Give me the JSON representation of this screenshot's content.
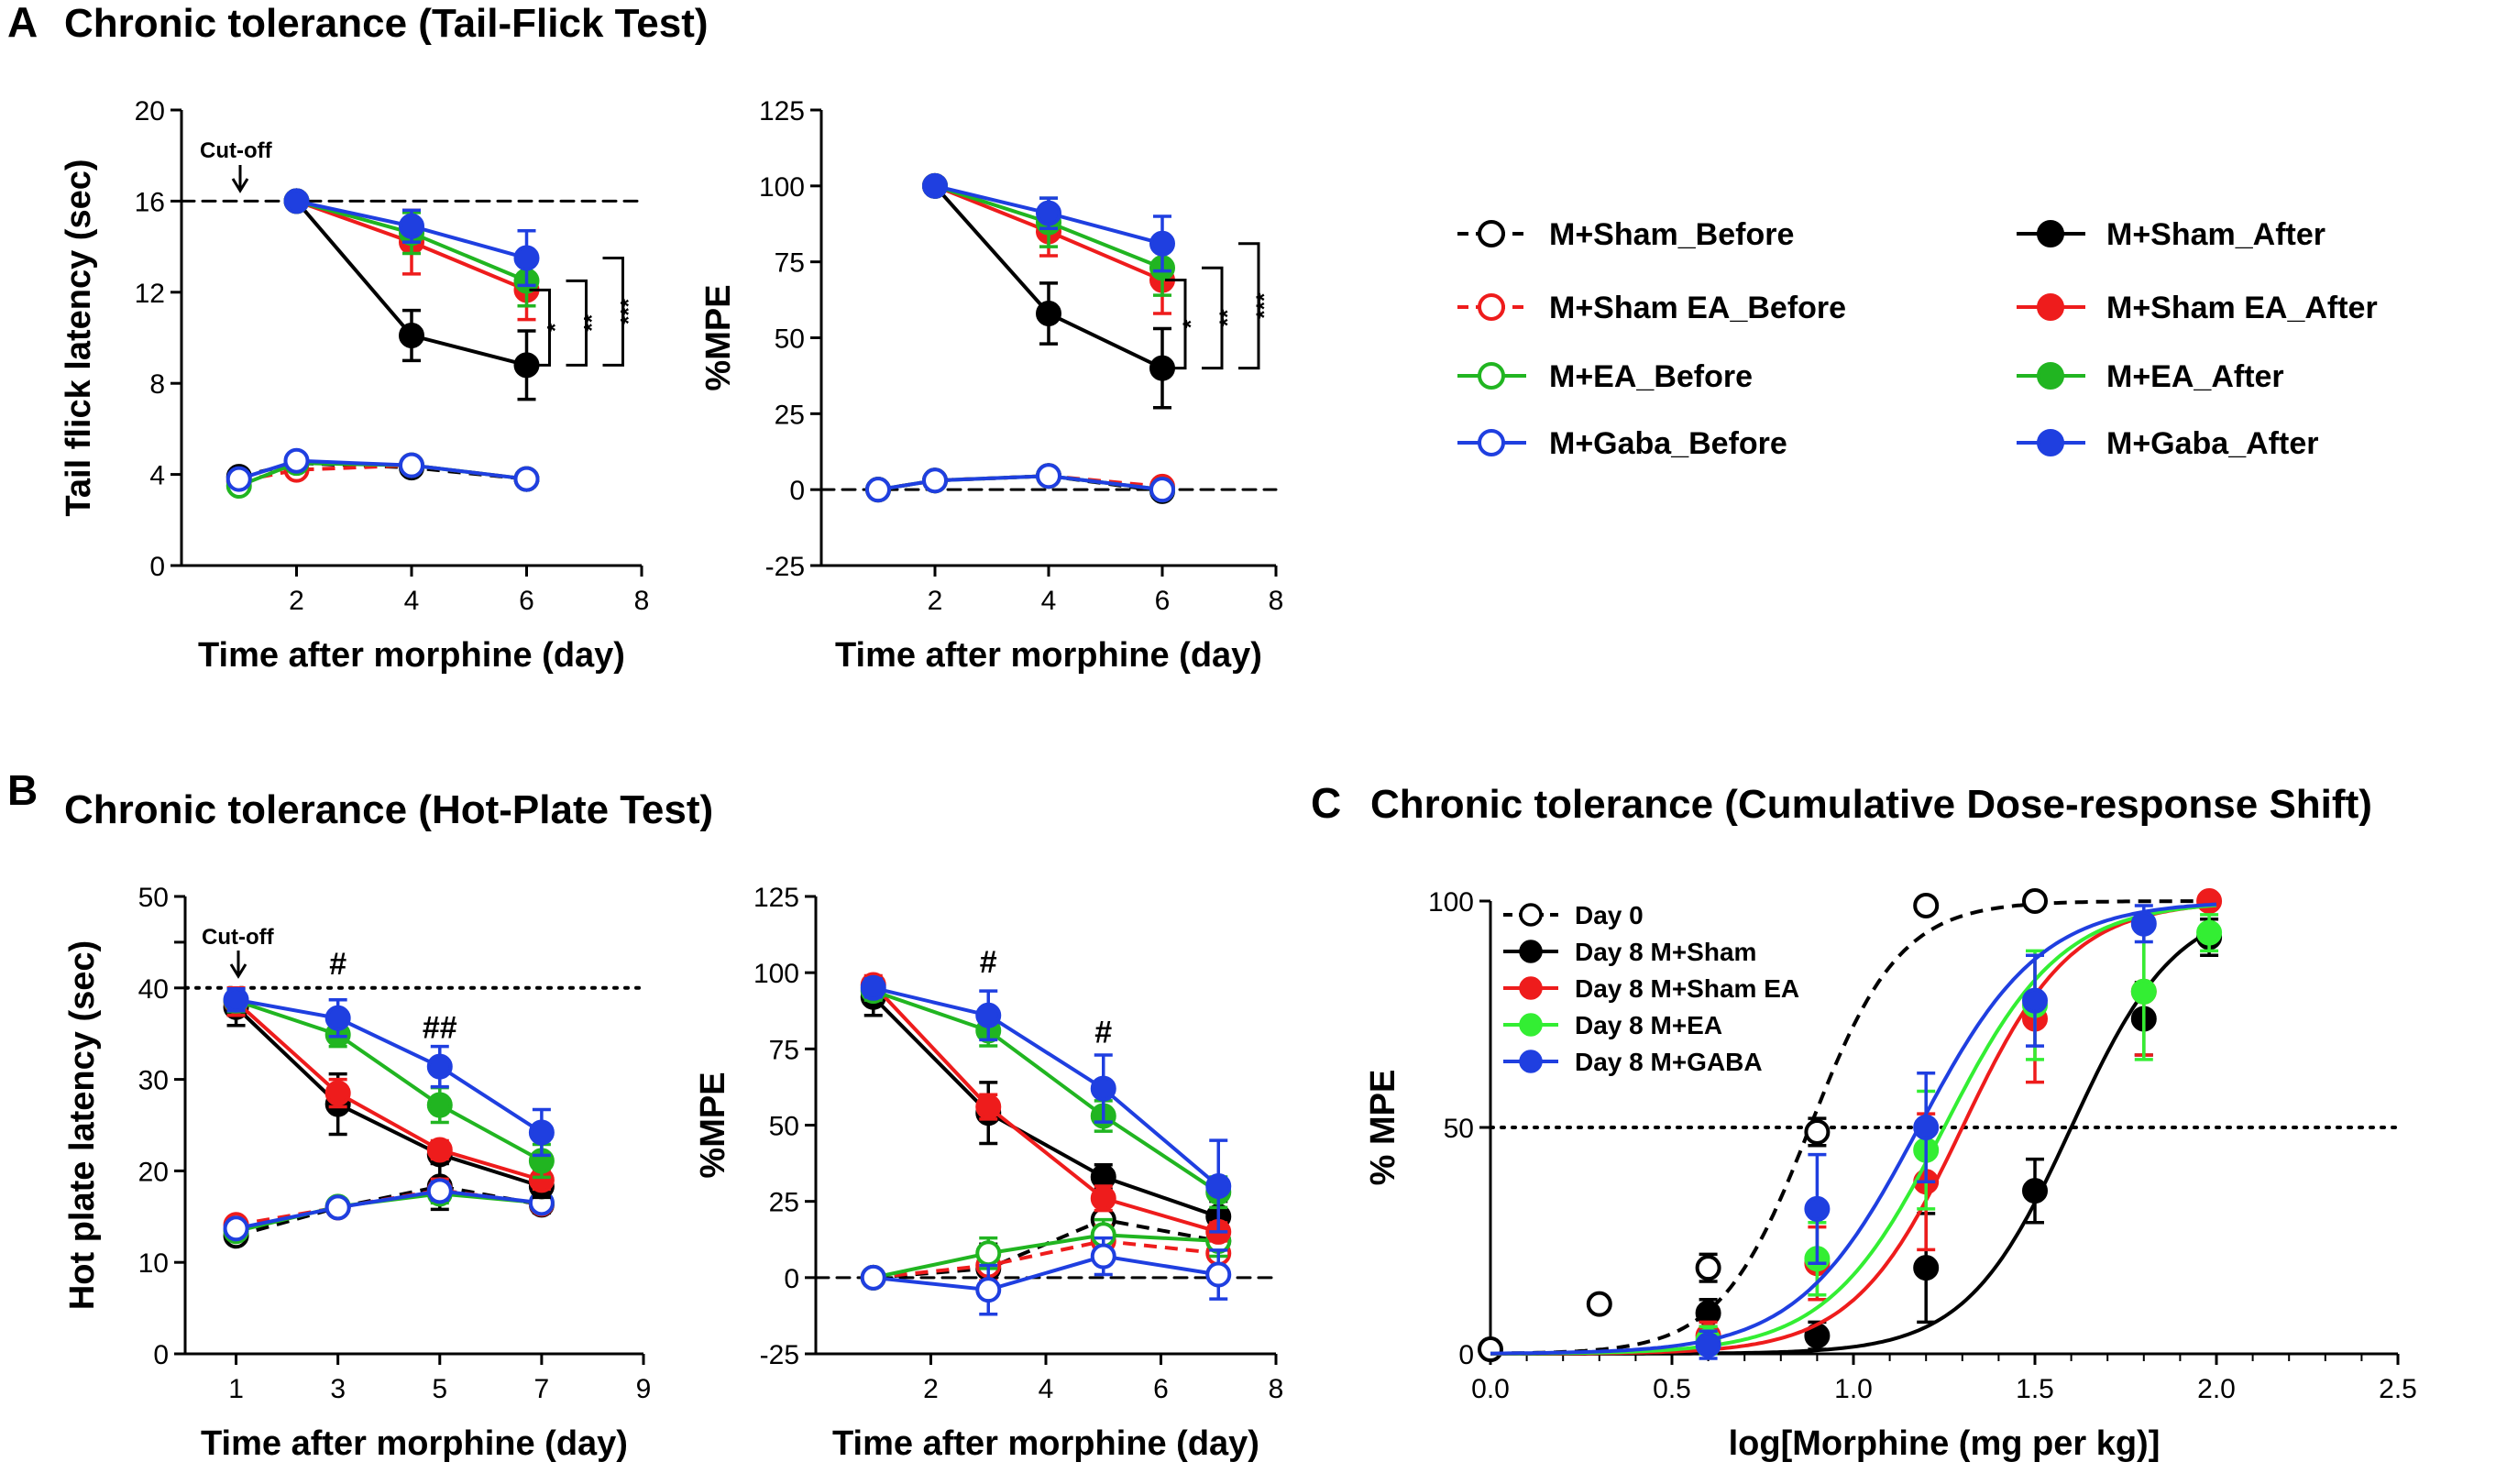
{
  "figure": {
    "panel_letters": {
      "a": "A",
      "b": "B",
      "c": "C"
    },
    "titles": {
      "a": "Chronic tolerance (Tail-Flick Test)",
      "b": "Chronic tolerance (Hot-Plate Test)",
      "c": "Chronic tolerance (Cumulative Dose-response Shift)"
    },
    "cutoff_label": "Cut-off"
  },
  "colors": {
    "sham": "#000000",
    "sham_ea": "#ee1c1c",
    "ea": "#21b521",
    "gaba": "#1f3fe0",
    "ea_c": "#33ee33"
  },
  "legend_a": {
    "before": [
      "M+Sham_Before",
      "M+Sham EA_Before",
      "M+EA_Before",
      "M+Gaba_Before"
    ],
    "after": [
      "M+Sham_After",
      "M+Sham EA_After",
      "M+EA_After",
      "M+Gaba_After"
    ]
  },
  "chart_data": [
    {
      "id": "a1",
      "type": "line",
      "xlabel": "Time after morphine (day)",
      "ylabel": "Tail flick latency (sec)",
      "xlim": [
        0,
        8
      ],
      "ylim": [
        0,
        20
      ],
      "xticks": [
        "2",
        "4",
        "6",
        "8"
      ],
      "yticks": [
        "0",
        "4",
        "8",
        "12",
        "16",
        "20"
      ],
      "reference_line": {
        "y": 16,
        "style": "dashed"
      },
      "significance": [
        "*",
        "**",
        "***"
      ],
      "series": [
        {
          "name": "M+Sham_Before",
          "color": "sham",
          "filled": false,
          "dashed": true,
          "x": [
            1,
            2,
            4,
            6
          ],
          "y": [
            3.9,
            4.5,
            4.3,
            3.8
          ],
          "err": [
            0.3,
            0.3,
            0.3,
            0.3
          ]
        },
        {
          "name": "M+Sham EA_Before",
          "color": "sham_ea",
          "filled": false,
          "dashed": true,
          "x": [
            1,
            2,
            4,
            6
          ],
          "y": [
            3.7,
            4.2,
            4.4,
            3.8
          ],
          "err": [
            0.3,
            0.3,
            0.3,
            0.3
          ]
        },
        {
          "name": "M+EA_Before",
          "color": "ea",
          "filled": false,
          "dashed": false,
          "x": [
            1,
            2,
            4,
            6
          ],
          "y": [
            3.5,
            4.5,
            4.4,
            3.8
          ],
          "err": [
            0.3,
            0.3,
            0.3,
            0.3
          ]
        },
        {
          "name": "M+Gaba_Before",
          "color": "gaba",
          "filled": false,
          "dashed": false,
          "x": [
            1,
            2,
            4,
            6
          ],
          "y": [
            3.8,
            4.6,
            4.4,
            3.8
          ],
          "err": [
            0.3,
            0.3,
            0.3,
            0.3
          ]
        },
        {
          "name": "M+Sham_After",
          "color": "sham",
          "filled": true,
          "dashed": false,
          "x": [
            2,
            4,
            6
          ],
          "y": [
            16,
            10.1,
            8.8
          ],
          "err": [
            0,
            1.1,
            1.5
          ]
        },
        {
          "name": "M+Sham EA_After",
          "color": "sham_ea",
          "filled": true,
          "dashed": false,
          "x": [
            2,
            4,
            6
          ],
          "y": [
            16,
            14.2,
            12.1
          ],
          "err": [
            0,
            1.4,
            1.3
          ]
        },
        {
          "name": "M+EA_After",
          "color": "ea",
          "filled": true,
          "dashed": false,
          "x": [
            2,
            4,
            6
          ],
          "y": [
            16,
            14.6,
            12.5
          ],
          "err": [
            0,
            0.9,
            1.1
          ]
        },
        {
          "name": "M+Gaba_After",
          "color": "gaba",
          "filled": true,
          "dashed": false,
          "x": [
            2,
            4,
            6
          ],
          "y": [
            16,
            14.9,
            13.5
          ],
          "err": [
            0,
            0.7,
            1.2
          ]
        }
      ]
    },
    {
      "id": "a2",
      "type": "line",
      "xlabel": "Time after morphine (day)",
      "ylabel": "%MPE",
      "xlim": [
        0,
        8
      ],
      "ylim": [
        -25,
        125
      ],
      "xticks": [
        "2",
        "4",
        "6",
        "8"
      ],
      "yticks": [
        "-25",
        "0",
        "25",
        "50",
        "75",
        "100",
        "125"
      ],
      "reference_line": {
        "y": 0,
        "style": "dashed"
      },
      "significance": [
        "*",
        "**",
        "***"
      ],
      "series": [
        {
          "name": "M+Sham_Before",
          "color": "sham",
          "filled": false,
          "dashed": true,
          "x": [
            1,
            2,
            4,
            6
          ],
          "y": [
            0,
            3,
            4.5,
            -0.5
          ],
          "err": [
            0,
            0,
            0,
            0
          ]
        },
        {
          "name": "M+Sham EA_Before",
          "color": "sham_ea",
          "filled": false,
          "dashed": true,
          "x": [
            1,
            2,
            4,
            6
          ],
          "y": [
            0,
            3,
            4.5,
            1
          ],
          "err": [
            0,
            0,
            0,
            0
          ]
        },
        {
          "name": "M+EA_Before",
          "color": "ea",
          "filled": false,
          "dashed": false,
          "x": [
            1,
            2,
            4,
            6
          ],
          "y": [
            0,
            3,
            4.5,
            0
          ],
          "err": [
            0,
            0,
            0,
            0
          ]
        },
        {
          "name": "M+Gaba_Before",
          "color": "gaba",
          "filled": false,
          "dashed": false,
          "x": [
            1,
            2,
            4,
            6
          ],
          "y": [
            0,
            3,
            4.5,
            0
          ],
          "err": [
            0,
            0,
            0,
            0
          ]
        },
        {
          "name": "M+Sham_After",
          "color": "sham",
          "filled": true,
          "dashed": false,
          "x": [
            2,
            4,
            6
          ],
          "y": [
            100,
            58,
            40
          ],
          "err": [
            0,
            10,
            13
          ]
        },
        {
          "name": "M+Sham EA_After",
          "color": "sham_ea",
          "filled": true,
          "dashed": false,
          "x": [
            2,
            4,
            6
          ],
          "y": [
            100,
            85,
            69
          ],
          "err": [
            0,
            8,
            11
          ]
        },
        {
          "name": "M+EA_After",
          "color": "ea",
          "filled": true,
          "dashed": false,
          "x": [
            2,
            4,
            6
          ],
          "y": [
            100,
            88,
            73
          ],
          "err": [
            0,
            8,
            9
          ]
        },
        {
          "name": "M+Gaba_After",
          "color": "gaba",
          "filled": true,
          "dashed": false,
          "x": [
            2,
            4,
            6
          ],
          "y": [
            100,
            91,
            81
          ],
          "err": [
            0,
            5,
            9
          ]
        }
      ]
    },
    {
      "id": "b1",
      "type": "line",
      "xlabel": "Time after morphine (day)",
      "ylabel": "Hot plate latency (sec)",
      "xlim": [
        0,
        9
      ],
      "ylim": [
        0,
        50
      ],
      "xticks": [
        "1",
        "3",
        "5",
        "7",
        "9"
      ],
      "yticks": [
        "0",
        "10",
        "20",
        "30",
        "40",
        "50"
      ],
      "reference_line": {
        "y": 40,
        "style": "dotted"
      },
      "annotations": [
        {
          "x": 3,
          "y": 41.5,
          "text": "#"
        },
        {
          "x": 5,
          "y": 34.5,
          "text": "##"
        }
      ],
      "series": [
        {
          "name": "M+Sham_Before",
          "color": "sham",
          "filled": false,
          "dashed": true,
          "x": [
            1,
            3,
            5,
            7
          ],
          "y": [
            12.9,
            16,
            18.3,
            16.3
          ],
          "err": [
            0.7,
            0.7,
            2.5,
            0.9
          ]
        },
        {
          "name": "M+Sham EA_Before",
          "color": "sham_ea",
          "filled": false,
          "dashed": true,
          "x": [
            1,
            3,
            5,
            7
          ],
          "y": [
            14.1,
            16,
            17.9,
            16.4
          ],
          "err": [
            0.7,
            0.7,
            1.2,
            0.8
          ]
        },
        {
          "name": "M+EA_Before",
          "color": "ea",
          "filled": false,
          "dashed": false,
          "x": [
            1,
            3,
            5,
            7
          ],
          "y": [
            13.4,
            16.1,
            17.5,
            16.5
          ],
          "err": [
            0.7,
            0.7,
            1.0,
            0.8
          ]
        },
        {
          "name": "M+Gaba_Before",
          "color": "gaba",
          "filled": false,
          "dashed": false,
          "x": [
            1,
            3,
            5,
            7
          ],
          "y": [
            13.7,
            16,
            17.8,
            16.5
          ],
          "err": [
            0.7,
            0.7,
            1.0,
            0.8
          ]
        },
        {
          "name": "M+Sham_After",
          "color": "sham",
          "filled": true,
          "dashed": false,
          "x": [
            1,
            3,
            5,
            7
          ],
          "y": [
            37.9,
            27.3,
            21.8,
            18.3
          ],
          "err": [
            2,
            3.3,
            1.0,
            1.2
          ]
        },
        {
          "name": "M+Sham EA_After",
          "color": "sham_ea",
          "filled": true,
          "dashed": false,
          "x": [
            1,
            3,
            5,
            7
          ],
          "y": [
            38.5,
            28.5,
            22.3,
            19.0
          ],
          "err": [
            1.5,
            1.5,
            1.0,
            1.0
          ]
        },
        {
          "name": "M+EA_After",
          "color": "ea",
          "filled": true,
          "dashed": false,
          "x": [
            1,
            3,
            5,
            7
          ],
          "y": [
            38.6,
            34.9,
            27.2,
            21.1
          ],
          "err": [
            1.2,
            1.3,
            1.9,
            1.8
          ]
        },
        {
          "name": "M+Gaba_After",
          "color": "gaba",
          "filled": true,
          "dashed": false,
          "x": [
            1,
            3,
            5,
            7
          ],
          "y": [
            38.7,
            36.7,
            31.4,
            24.2
          ],
          "err": [
            1.2,
            2.0,
            2.2,
            2.5
          ]
        }
      ]
    },
    {
      "id": "b2",
      "type": "line",
      "xlabel": "Time after morphine (day)",
      "ylabel": "%MPE",
      "xlim": [
        0,
        8
      ],
      "ylim": [
        -25,
        125
      ],
      "xticks": [
        "2",
        "4",
        "6",
        "8"
      ],
      "yticks": [
        "-25",
        "0",
        "25",
        "50",
        "75",
        "100",
        "125"
      ],
      "reference_line": {
        "y": 0,
        "style": "dashed"
      },
      "annotations": [
        {
          "x": 3,
          "y": 100,
          "text": "#"
        },
        {
          "x": 5,
          "y": 77,
          "text": "#"
        }
      ],
      "series": [
        {
          "name": "M+Sham_Before",
          "color": "sham",
          "filled": false,
          "dashed": true,
          "x": [
            1,
            3,
            5,
            7
          ],
          "y": [
            0,
            3,
            19,
            12
          ],
          "err": [
            0,
            8,
            6,
            5
          ]
        },
        {
          "name": "M+Sham EA_Before",
          "color": "sham_ea",
          "filled": false,
          "dashed": true,
          "x": [
            1,
            3,
            5,
            7
          ],
          "y": [
            0,
            4,
            12,
            8
          ],
          "err": [
            0,
            5,
            5,
            5
          ]
        },
        {
          "name": "M+EA_Before",
          "color": "ea",
          "filled": false,
          "dashed": false,
          "x": [
            1,
            3,
            5,
            7
          ],
          "y": [
            0,
            8,
            14,
            12
          ],
          "err": [
            0,
            5,
            5,
            5
          ]
        },
        {
          "name": "M+Gaba_Before",
          "color": "gaba",
          "filled": false,
          "dashed": false,
          "x": [
            1,
            3,
            5,
            7
          ],
          "y": [
            0,
            -4,
            7,
            1
          ],
          "err": [
            0,
            8,
            6,
            8
          ]
        },
        {
          "name": "M+Sham_After",
          "color": "sham",
          "filled": true,
          "dashed": false,
          "x": [
            1,
            3,
            5,
            7
          ],
          "y": [
            92,
            54,
            33,
            20
          ],
          "err": [
            6,
            10,
            4,
            5
          ]
        },
        {
          "name": "M+Sham EA_After",
          "color": "sham_ea",
          "filled": true,
          "dashed": false,
          "x": [
            1,
            3,
            5,
            7
          ],
          "y": [
            96,
            56,
            26,
            15
          ],
          "err": [
            3,
            4,
            4,
            3
          ]
        },
        {
          "name": "M+EA_After",
          "color": "ea",
          "filled": true,
          "dashed": false,
          "x": [
            1,
            3,
            5,
            7
          ],
          "y": [
            94,
            81,
            53,
            28
          ],
          "err": [
            3,
            5,
            5,
            5
          ]
        },
        {
          "name": "M+Gaba_After",
          "color": "gaba",
          "filled": true,
          "dashed": false,
          "x": [
            1,
            3,
            5,
            7
          ],
          "y": [
            95,
            86,
            62,
            30
          ],
          "err": [
            3,
            8,
            11,
            15
          ]
        }
      ]
    },
    {
      "id": "c",
      "type": "scatter",
      "xlabel": "log[Morphine (mg per kg)]",
      "ylabel": "% MPE",
      "xlim": [
        0,
        2.5
      ],
      "ylim": [
        0,
        100
      ],
      "xticks": [
        "0.0",
        "0.5",
        "1.0",
        "1.5",
        "2.0",
        "2.5"
      ],
      "yticks": [
        "0",
        "50",
        "100"
      ],
      "reference_line": {
        "y": 50,
        "style": "dotted"
      },
      "legend": [
        "Day 0",
        "Day 8 M+Sham",
        "Day 8 M+Sham EA",
        "Day 8 M+EA",
        "Day 8 M+GABA"
      ],
      "series": [
        {
          "name": "Day 0",
          "color": "sham",
          "filled": false,
          "dashed": true,
          "x": [
            0.0,
            0.3,
            0.6,
            0.9,
            1.2,
            1.5
          ],
          "y": [
            1,
            11,
            19,
            49,
            99,
            100
          ],
          "err": [
            0,
            0,
            3,
            3,
            0,
            0
          ],
          "curve": {
            "ec50": 0.88,
            "hill": 3.5
          }
        },
        {
          "name": "Day 8 M+Sham",
          "color": "sham",
          "filled": true,
          "dashed": false,
          "x": [
            0.6,
            0.9,
            1.2,
            1.5,
            1.8,
            1.98
          ],
          "y": [
            9,
            4,
            19,
            36,
            74,
            92
          ],
          "err": [
            3,
            3,
            12,
            7,
            8,
            4
          ],
          "curve": {
            "ec50": 1.6,
            "hill": 3.0
          }
        },
        {
          "name": "Day 8 M+Sham EA",
          "color": "sham_ea",
          "filled": true,
          "dashed": false,
          "x": [
            0.6,
            0.9,
            1.2,
            1.5,
            1.8,
            1.98
          ],
          "y": [
            4,
            20,
            38,
            74,
            80,
            100
          ],
          "err": [
            3,
            8,
            15,
            14,
            14,
            0
          ],
          "curve": {
            "ec50": 1.3,
            "hill": 2.9
          }
        },
        {
          "name": "Day 8 M+EA",
          "color": "ea_c",
          "filled": true,
          "dashed": false,
          "x": [
            0.6,
            0.9,
            1.2,
            1.5,
            1.8,
            1.98
          ],
          "y": [
            3,
            21,
            45,
            77,
            80,
            93
          ],
          "err": [
            3,
            8,
            13,
            12,
            15,
            4
          ],
          "curve": {
            "ec50": 1.25,
            "hill": 2.7
          }
        },
        {
          "name": "Day 8 M+GABA",
          "color": "gaba",
          "filled": true,
          "dashed": false,
          "x": [
            0.6,
            0.9,
            1.2,
            1.5,
            1.8
          ],
          "y": [
            2,
            32,
            50,
            78,
            95
          ],
          "err": [
            3,
            12,
            12,
            10,
            4
          ],
          "curve": {
            "ec50": 1.18,
            "hill": 2.6
          }
        }
      ]
    }
  ]
}
